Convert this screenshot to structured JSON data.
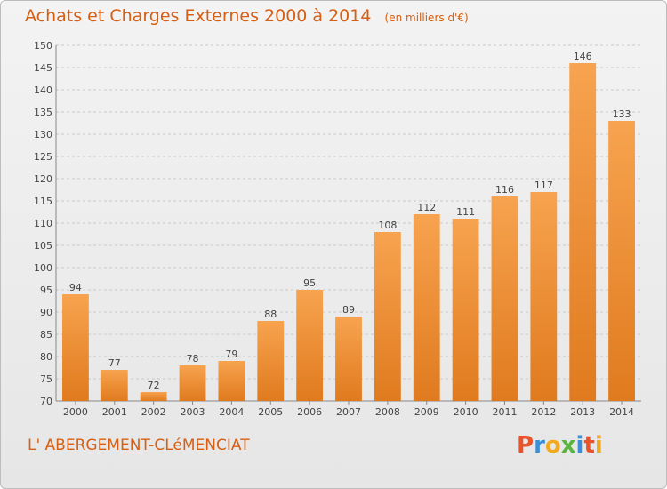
{
  "header": {
    "title": "Achats et Charges Externes 2000 à 2014",
    "unit": "(en milliers d'€)"
  },
  "footer": {
    "commune": "L' ABERGEMENT-CLéMENCIAT",
    "logo_text": "Proxiti",
    "logo_colors": [
      "#e8532a",
      "#3a8fd6",
      "#f2a91e",
      "#5ab53f",
      "#3a8fd6",
      "#e8532a",
      "#f2a91e"
    ]
  },
  "chart_data": {
    "type": "bar",
    "categories": [
      "2000",
      "2001",
      "2002",
      "2003",
      "2004",
      "2005",
      "2006",
      "2007",
      "2008",
      "2009",
      "2010",
      "2011",
      "2012",
      "2013",
      "2014"
    ],
    "values": [
      94,
      77,
      72,
      78,
      79,
      88,
      95,
      89,
      108,
      112,
      111,
      116,
      117,
      146,
      133
    ],
    "ylim": [
      70,
      150
    ],
    "yticks": [
      70,
      75,
      80,
      85,
      90,
      95,
      100,
      105,
      110,
      115,
      120,
      125,
      130,
      135,
      140,
      145,
      150
    ],
    "grid": true,
    "bar_color_top": "#f7a34f",
    "bar_color_bottom": "#e07a1e"
  }
}
